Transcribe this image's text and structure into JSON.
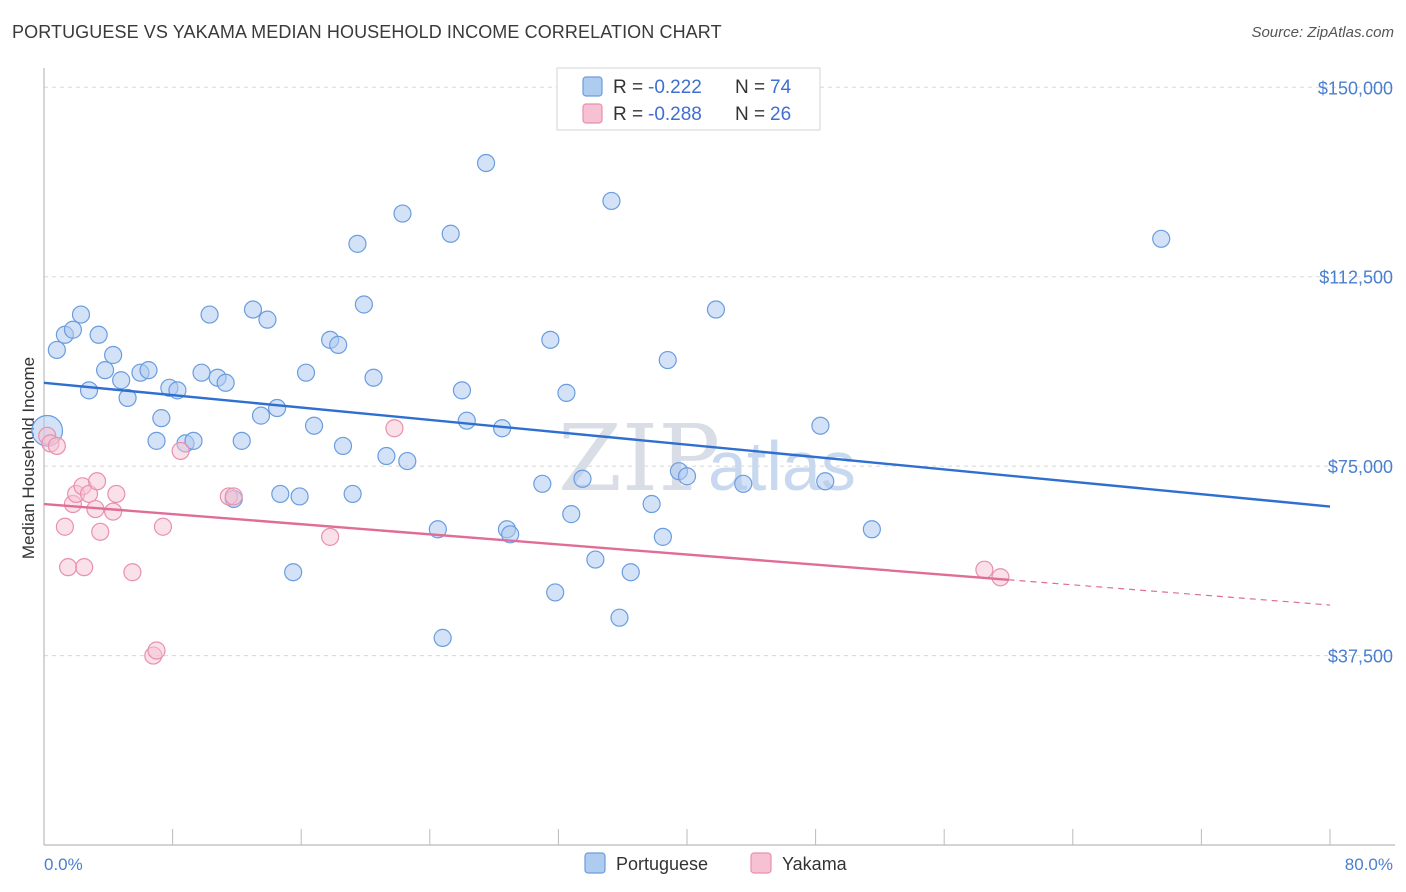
{
  "title": "PORTUGUESE VS YAKAMA MEDIAN HOUSEHOLD INCOME CORRELATION CHART",
  "source": "Source: ZipAtlas.com",
  "watermark": {
    "zip": "ZIP",
    "atlas": "atlas"
  },
  "legend": {
    "r_label": "R =",
    "n_label": "N =",
    "portuguese": {
      "r": "-0.222",
      "n": "74"
    },
    "yakama": {
      "r": "-0.288",
      "n": "26"
    }
  },
  "bottom_legend": {
    "portuguese": "Portuguese",
    "yakama": "Yakama"
  },
  "colors": {
    "portuguese_fill": "#aecbf0",
    "portuguese_stroke": "#6a9de0",
    "portuguese_line": "#2f6fd0",
    "yakama_fill": "#f6c1d2",
    "yakama_stroke": "#e890ae",
    "yakama_line": "#e06c98",
    "grid": "#d8d8d8",
    "axis_text": "#4a7fd0"
  },
  "chart_data": {
    "type": "scatter",
    "title": "PORTUGUESE VS YAKAMA MEDIAN HOUSEHOLD INCOME CORRELATION CHART",
    "xlabel": "",
    "ylabel": "Median Household Income",
    "xlim": [
      0,
      80
    ],
    "ylim": [
      0,
      155000
    ],
    "x_tick_labels": [
      "0.0%",
      "80.0%"
    ],
    "y_ticks": [
      37500,
      75000,
      112500,
      150000
    ],
    "y_tick_labels": [
      "$37,500",
      "$75,000",
      "$112,500",
      "$150,000"
    ],
    "grid": true,
    "legend_position": "top-center",
    "series": [
      {
        "name": "Portuguese",
        "trend": {
          "x": [
            0,
            80
          ],
          "y": [
            91500,
            67000
          ]
        },
        "points": [
          [
            0.2,
            82000,
            1.8
          ],
          [
            0.8,
            98000,
            1
          ],
          [
            1.3,
            101000,
            1
          ],
          [
            1.8,
            102000,
            1
          ],
          [
            2.3,
            105000,
            1
          ],
          [
            2.8,
            90000,
            1
          ],
          [
            3.4,
            101000,
            1
          ],
          [
            3.8,
            94000,
            1
          ],
          [
            4.3,
            97000,
            1
          ],
          [
            4.8,
            92000,
            1
          ],
          [
            5.2,
            88500,
            1
          ],
          [
            6.0,
            93500,
            1
          ],
          [
            6.5,
            94000,
            1
          ],
          [
            7.0,
            80000,
            1
          ],
          [
            7.3,
            84500,
            1
          ],
          [
            7.8,
            90500,
            1
          ],
          [
            8.3,
            90000,
            1
          ],
          [
            8.8,
            79500,
            1
          ],
          [
            9.3,
            80000,
            1
          ],
          [
            9.8,
            93500,
            1
          ],
          [
            10.3,
            105000,
            1
          ],
          [
            10.8,
            92500,
            1
          ],
          [
            11.3,
            91500,
            1
          ],
          [
            11.8,
            68500,
            1
          ],
          [
            12.3,
            80000,
            1
          ],
          [
            13.0,
            106000,
            1
          ],
          [
            13.5,
            85000,
            1
          ],
          [
            13.9,
            104000,
            1
          ],
          [
            14.5,
            86500,
            1
          ],
          [
            14.7,
            69500,
            1
          ],
          [
            15.5,
            54000,
            1
          ],
          [
            15.9,
            69000,
            1
          ],
          [
            16.3,
            93500,
            1
          ],
          [
            16.8,
            83000,
            1
          ],
          [
            17.8,
            100000,
            1
          ],
          [
            18.3,
            99000,
            1
          ],
          [
            18.6,
            79000,
            1
          ],
          [
            19.2,
            69500,
            1
          ],
          [
            19.5,
            119000,
            1
          ],
          [
            19.9,
            107000,
            1
          ],
          [
            20.5,
            92500,
            1
          ],
          [
            21.3,
            77000,
            1
          ],
          [
            22.3,
            125000,
            1
          ],
          [
            22.6,
            76000,
            1
          ],
          [
            24.5,
            62500,
            1
          ],
          [
            24.8,
            41000,
            1
          ],
          [
            25.3,
            121000,
            1
          ],
          [
            26.0,
            90000,
            1
          ],
          [
            26.3,
            84000,
            1
          ],
          [
            27.5,
            135000,
            1
          ],
          [
            28.5,
            82500,
            1
          ],
          [
            28.8,
            62500,
            1
          ],
          [
            29.0,
            61500,
            1
          ],
          [
            31.0,
            71500,
            1
          ],
          [
            31.5,
            100000,
            1
          ],
          [
            31.8,
            50000,
            1
          ],
          [
            32.5,
            89500,
            1
          ],
          [
            32.8,
            65500,
            1
          ],
          [
            33.5,
            72500,
            1
          ],
          [
            34.3,
            56500,
            1
          ],
          [
            35.3,
            127500,
            1
          ],
          [
            35.8,
            45000,
            1
          ],
          [
            36.5,
            54000,
            1
          ],
          [
            37.8,
            67500,
            1
          ],
          [
            38.5,
            61000,
            1
          ],
          [
            38.8,
            96000,
            1
          ],
          [
            39.5,
            74000,
            1
          ],
          [
            40.0,
            73000,
            1
          ],
          [
            41.8,
            106000,
            1
          ],
          [
            43.5,
            71500,
            1
          ],
          [
            48.3,
            83000,
            1
          ],
          [
            48.6,
            72000,
            1
          ],
          [
            51.5,
            62500,
            1
          ],
          [
            69.5,
            120000,
            1
          ]
        ]
      },
      {
        "name": "Yakama",
        "trend": {
          "x": [
            0,
            60
          ],
          "y": [
            67500,
            52500
          ]
        },
        "trend_dashed": {
          "x": [
            60,
            80
          ],
          "y": [
            52500,
            47500
          ]
        },
        "points": [
          [
            0.2,
            81000
          ],
          [
            0.4,
            79500
          ],
          [
            0.8,
            79000
          ],
          [
            1.3,
            63000
          ],
          [
            1.5,
            55000
          ],
          [
            1.8,
            67500
          ],
          [
            2.0,
            69500
          ],
          [
            2.4,
            71000
          ],
          [
            2.5,
            55000
          ],
          [
            2.8,
            69500
          ],
          [
            3.2,
            66500
          ],
          [
            3.3,
            72000
          ],
          [
            3.5,
            62000
          ],
          [
            4.3,
            66000
          ],
          [
            4.5,
            69500
          ],
          [
            5.5,
            54000
          ],
          [
            6.8,
            37500
          ],
          [
            7.0,
            38500
          ],
          [
            7.4,
            63000
          ],
          [
            8.5,
            78000
          ],
          [
            11.5,
            69000
          ],
          [
            11.8,
            69000
          ],
          [
            17.8,
            61000
          ],
          [
            21.8,
            82500
          ],
          [
            58.5,
            54500
          ],
          [
            59.5,
            53000
          ]
        ]
      }
    ]
  }
}
